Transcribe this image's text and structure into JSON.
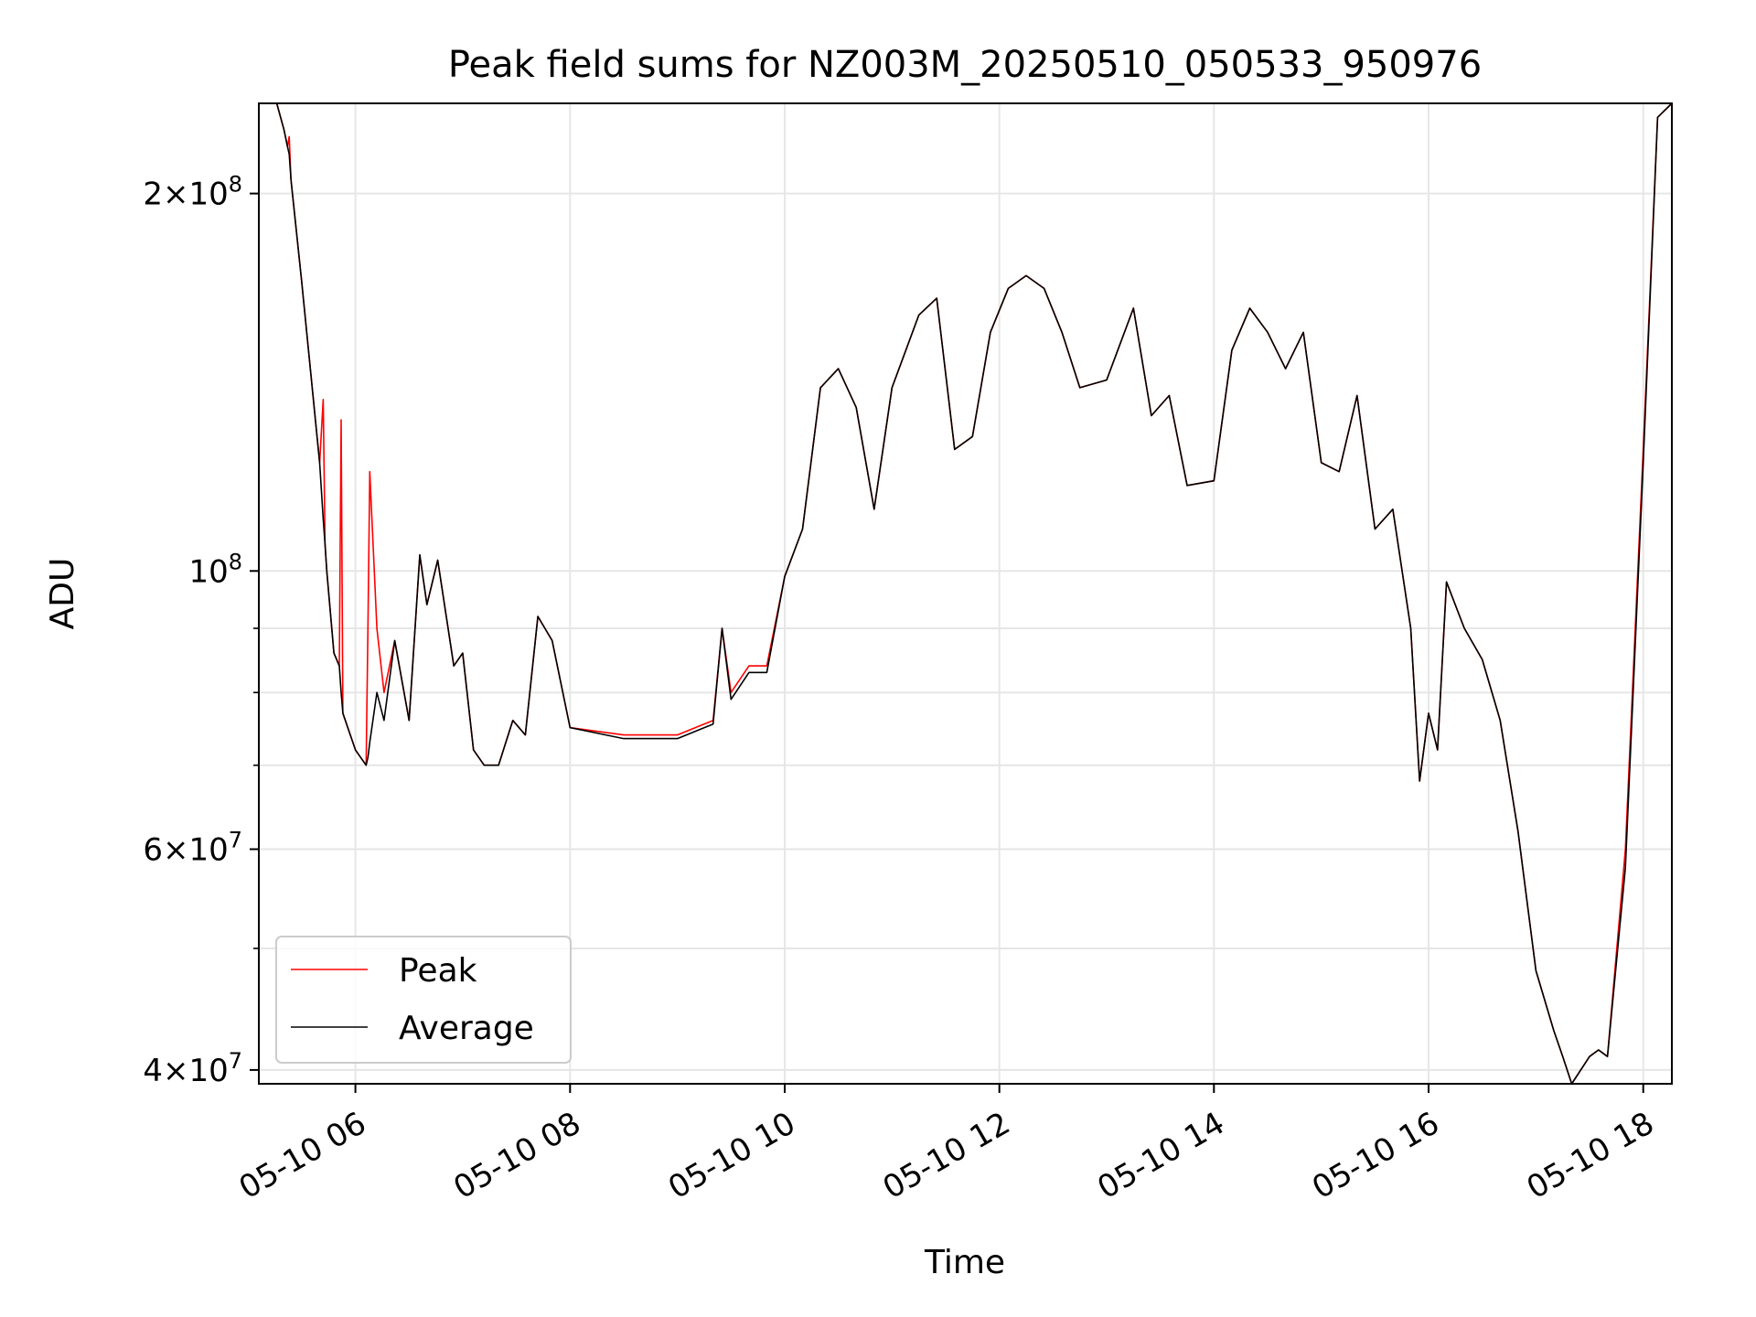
{
  "chart_data": {
    "type": "line",
    "title": "Peak field sums for NZ003M_20250510_050533_950976",
    "xlabel": "Time",
    "ylabel": "ADU",
    "yscale": "log",
    "xlim": [
      "2025-05-10 05:06",
      "2025-05-10 18:16"
    ],
    "ylim": [
      39000000,
      236000000
    ],
    "grid": true,
    "legend": {
      "placement": "lower-left"
    },
    "x_ticks": [
      {
        "t": "2025-05-10 06:00",
        "label": "05-10 06"
      },
      {
        "t": "2025-05-10 08:00",
        "label": "05-10 08"
      },
      {
        "t": "2025-05-10 10:00",
        "label": "05-10 10"
      },
      {
        "t": "2025-05-10 12:00",
        "label": "05-10 12"
      },
      {
        "t": "2025-05-10 14:00",
        "label": "05-10 14"
      },
      {
        "t": "2025-05-10 16:00",
        "label": "05-10 16"
      },
      {
        "t": "2025-05-10 18:00",
        "label": "05-10 18"
      }
    ],
    "y_ticks": [
      {
        "value": 40000000,
        "mant": "4",
        "exp": "7"
      },
      {
        "value": 60000000,
        "mant": "6",
        "exp": "7"
      },
      {
        "value": 100000000,
        "mant": "",
        "exp": "8"
      },
      {
        "value": 200000000,
        "mant": "2",
        "exp": "8"
      }
    ],
    "y_minor_ticks": [
      50000000,
      70000000,
      80000000,
      90000000
    ],
    "series": [
      {
        "name": "Peak",
        "color": "#ff0000",
        "x": [
          "2025-05-10 05:06",
          "2025-05-10 05:16",
          "2025-05-10 05:20",
          "2025-05-10 05:22",
          "2025-05-10 05:23",
          "2025-05-10 05:24",
          "2025-05-10 05:30",
          "2025-05-10 05:40",
          "2025-05-10 05:42",
          "2025-05-10 05:43",
          "2025-05-10 05:44",
          "2025-05-10 05:48",
          "2025-05-10 05:51",
          "2025-05-10 05:52",
          "2025-05-10 05:53",
          "2025-05-10 06:00",
          "2025-05-10 06:06",
          "2025-05-10 06:07",
          "2025-05-10 06:08",
          "2025-05-10 06:12",
          "2025-05-10 06:16",
          "2025-05-10 06:22",
          "2025-05-10 06:30",
          "2025-05-10 06:36",
          "2025-05-10 06:40",
          "2025-05-10 06:46",
          "2025-05-10 06:55",
          "2025-05-10 07:00",
          "2025-05-10 07:06",
          "2025-05-10 07:12",
          "2025-05-10 07:20",
          "2025-05-10 07:28",
          "2025-05-10 07:35",
          "2025-05-10 07:42",
          "2025-05-10 07:50",
          "2025-05-10 08:00",
          "2025-05-10 08:30",
          "2025-05-10 09:00",
          "2025-05-10 09:20",
          "2025-05-10 09:25",
          "2025-05-10 09:30",
          "2025-05-10 09:40",
          "2025-05-10 09:50",
          "2025-05-10 10:00",
          "2025-05-10 10:10",
          "2025-05-10 10:20",
          "2025-05-10 10:30",
          "2025-05-10 10:40",
          "2025-05-10 10:50",
          "2025-05-10 11:00",
          "2025-05-10 11:15",
          "2025-05-10 11:25",
          "2025-05-10 11:35",
          "2025-05-10 11:45",
          "2025-05-10 11:55",
          "2025-05-10 12:05",
          "2025-05-10 12:15",
          "2025-05-10 12:25",
          "2025-05-10 12:35",
          "2025-05-10 12:45",
          "2025-05-10 13:00",
          "2025-05-10 13:15",
          "2025-05-10 13:25",
          "2025-05-10 13:35",
          "2025-05-10 13:45",
          "2025-05-10 14:00",
          "2025-05-10 14:10",
          "2025-05-10 14:20",
          "2025-05-10 14:30",
          "2025-05-10 14:40",
          "2025-05-10 14:50",
          "2025-05-10 15:00",
          "2025-05-10 15:10",
          "2025-05-10 15:20",
          "2025-05-10 15:30",
          "2025-05-10 15:40",
          "2025-05-10 15:50",
          "2025-05-10 15:55",
          "2025-05-10 16:00",
          "2025-05-10 16:05",
          "2025-05-10 16:10",
          "2025-05-10 16:20",
          "2025-05-10 16:30",
          "2025-05-10 16:40",
          "2025-05-10 16:50",
          "2025-05-10 17:00",
          "2025-05-10 17:10",
          "2025-05-10 17:15",
          "2025-05-10 17:20",
          "2025-05-10 17:30",
          "2025-05-10 17:35",
          "2025-05-10 17:40",
          "2025-05-10 17:50",
          "2025-05-10 18:00",
          "2025-05-10 18:08",
          "2025-05-10 18:16"
        ],
        "y": [
          236000000,
          236000000,
          225000000,
          218000000,
          222000000,
          205000000,
          170000000,
          122000000,
          137000000,
          105000000,
          100000000,
          86000000,
          84000000,
          132000000,
          77000000,
          72000000,
          70000000,
          90000000,
          120000000,
          90000000,
          80000000,
          88000000,
          76000000,
          103000000,
          94000000,
          102000000,
          84000000,
          86000000,
          72000000,
          70000000,
          70000000,
          76000000,
          74000000,
          92000000,
          88000000,
          75000000,
          74000000,
          74000000,
          76000000,
          90000000,
          80000000,
          84000000,
          84000000,
          99000000,
          108000000,
          140000000,
          145000000,
          135000000,
          112000000,
          140000000,
          160000000,
          165000000,
          125000000,
          128000000,
          155000000,
          168000000,
          172000000,
          168000000,
          155000000,
          140000000,
          142000000,
          162000000,
          133000000,
          138000000,
          117000000,
          118000000,
          150000000,
          162000000,
          155000000,
          145000000,
          155000000,
          122000000,
          120000000,
          138000000,
          108000000,
          112000000,
          90000000,
          68000000,
          77000000,
          72000000,
          98000000,
          90000000,
          85000000,
          76000000,
          62000000,
          48000000,
          43000000,
          41000000,
          39000000,
          41000000,
          41500000,
          41000000,
          60000000,
          125000000,
          230000000,
          236000000
        ]
      },
      {
        "name": "Average",
        "color": "#000000",
        "x": [
          "2025-05-10 05:06",
          "2025-05-10 05:16",
          "2025-05-10 05:20",
          "2025-05-10 05:22",
          "2025-05-10 05:23",
          "2025-05-10 05:24",
          "2025-05-10 05:30",
          "2025-05-10 05:40",
          "2025-05-10 05:42",
          "2025-05-10 05:43",
          "2025-05-10 05:44",
          "2025-05-10 05:48",
          "2025-05-10 05:51",
          "2025-05-10 05:52",
          "2025-05-10 05:53",
          "2025-05-10 06:00",
          "2025-05-10 06:06",
          "2025-05-10 06:07",
          "2025-05-10 06:08",
          "2025-05-10 06:12",
          "2025-05-10 06:16",
          "2025-05-10 06:22",
          "2025-05-10 06:30",
          "2025-05-10 06:36",
          "2025-05-10 06:40",
          "2025-05-10 06:46",
          "2025-05-10 06:55",
          "2025-05-10 07:00",
          "2025-05-10 07:06",
          "2025-05-10 07:12",
          "2025-05-10 07:20",
          "2025-05-10 07:28",
          "2025-05-10 07:35",
          "2025-05-10 07:42",
          "2025-05-10 07:50",
          "2025-05-10 08:00",
          "2025-05-10 08:30",
          "2025-05-10 09:00",
          "2025-05-10 09:20",
          "2025-05-10 09:25",
          "2025-05-10 09:30",
          "2025-05-10 09:40",
          "2025-05-10 09:50",
          "2025-05-10 10:00",
          "2025-05-10 10:10",
          "2025-05-10 10:20",
          "2025-05-10 10:30",
          "2025-05-10 10:40",
          "2025-05-10 10:50",
          "2025-05-10 11:00",
          "2025-05-10 11:15",
          "2025-05-10 11:25",
          "2025-05-10 11:35",
          "2025-05-10 11:45",
          "2025-05-10 11:55",
          "2025-05-10 12:05",
          "2025-05-10 12:15",
          "2025-05-10 12:25",
          "2025-05-10 12:35",
          "2025-05-10 12:45",
          "2025-05-10 13:00",
          "2025-05-10 13:15",
          "2025-05-10 13:25",
          "2025-05-10 13:35",
          "2025-05-10 13:45",
          "2025-05-10 14:00",
          "2025-05-10 14:10",
          "2025-05-10 14:20",
          "2025-05-10 14:30",
          "2025-05-10 14:40",
          "2025-05-10 14:50",
          "2025-05-10 15:00",
          "2025-05-10 15:10",
          "2025-05-10 15:20",
          "2025-05-10 15:30",
          "2025-05-10 15:40",
          "2025-05-10 15:50",
          "2025-05-10 15:55",
          "2025-05-10 16:00",
          "2025-05-10 16:05",
          "2025-05-10 16:10",
          "2025-05-10 16:20",
          "2025-05-10 16:30",
          "2025-05-10 16:40",
          "2025-05-10 16:50",
          "2025-05-10 17:00",
          "2025-05-10 17:10",
          "2025-05-10 17:15",
          "2025-05-10 17:20",
          "2025-05-10 17:30",
          "2025-05-10 17:35",
          "2025-05-10 17:40",
          "2025-05-10 17:50",
          "2025-05-10 18:00",
          "2025-05-10 18:08",
          "2025-05-10 18:16"
        ],
        "y": [
          236000000,
          236000000,
          225000000,
          218000000,
          215000000,
          205000000,
          170000000,
          122000000,
          110000000,
          105000000,
          100000000,
          86000000,
          84000000,
          80000000,
          77000000,
          72000000,
          70000000,
          71000000,
          73000000,
          80000000,
          76000000,
          88000000,
          76000000,
          103000000,
          94000000,
          102000000,
          84000000,
          86000000,
          72000000,
          70000000,
          70000000,
          76000000,
          74000000,
          92000000,
          88000000,
          75000000,
          73500000,
          73500000,
          75500000,
          90000000,
          79000000,
          83000000,
          83000000,
          99000000,
          108000000,
          140000000,
          145000000,
          135000000,
          112000000,
          140000000,
          160000000,
          165000000,
          125000000,
          128000000,
          155000000,
          168000000,
          172000000,
          168000000,
          155000000,
          140000000,
          142000000,
          162000000,
          133000000,
          138000000,
          117000000,
          118000000,
          150000000,
          162000000,
          155000000,
          145000000,
          155000000,
          122000000,
          120000000,
          138000000,
          108000000,
          112000000,
          90000000,
          68000000,
          77000000,
          72000000,
          98000000,
          90000000,
          85000000,
          76000000,
          62000000,
          48000000,
          43000000,
          41000000,
          39000000,
          41000000,
          41500000,
          41000000,
          58000000,
          122000000,
          230000000,
          236000000
        ]
      }
    ]
  }
}
